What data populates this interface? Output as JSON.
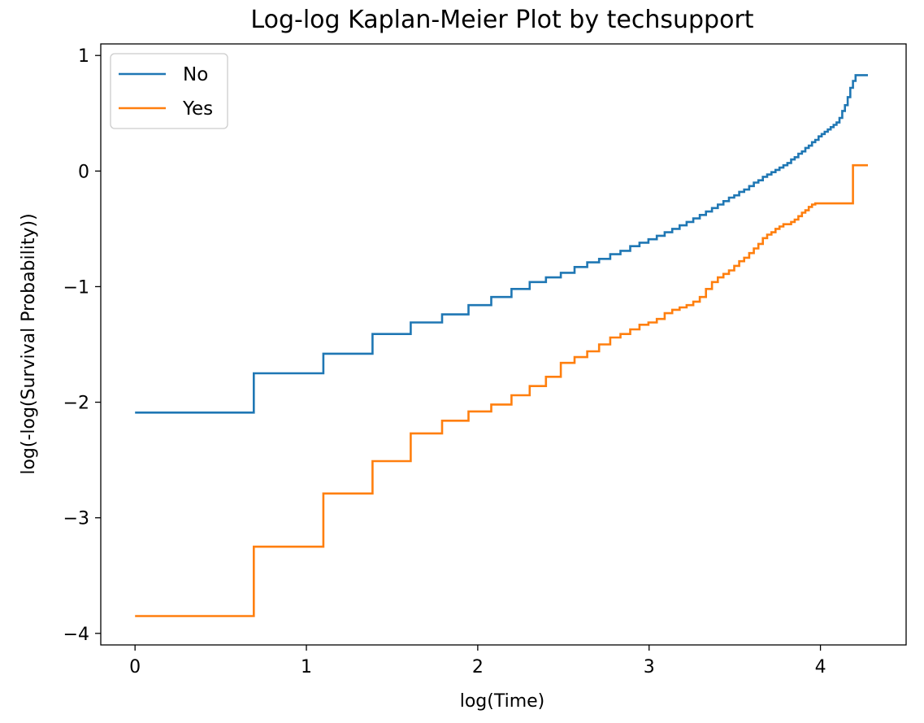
{
  "chart_data": {
    "type": "line",
    "step": true,
    "title": "Log-log Kaplan-Meier Plot by techsupport",
    "xlabel": "log(Time)",
    "ylabel": "log(-log(Survival Probability))",
    "xlim": [
      -0.2,
      4.5
    ],
    "ylim": [
      -4.1,
      1.1
    ],
    "xticks": [
      0,
      1,
      2,
      3,
      4
    ],
    "xtick_labels": [
      "0",
      "1",
      "2",
      "3",
      "4"
    ],
    "yticks": [
      -4,
      -3,
      -2,
      -1,
      0,
      1
    ],
    "ytick_labels": [
      "−4",
      "−3",
      "−2",
      "−1",
      "0",
      "1"
    ],
    "grid": false,
    "legend_position": "top-left",
    "series": [
      {
        "name": "No",
        "color": "#1f77b4",
        "x": [
          0,
          0.693,
          1.099,
          1.386,
          1.609,
          1.792,
          1.946,
          2.079,
          2.197,
          2.303,
          2.398,
          2.485,
          2.565,
          2.639,
          2.708,
          2.773,
          2.833,
          2.89,
          2.944,
          2.996,
          3.045,
          3.091,
          3.135,
          3.178,
          3.219,
          3.258,
          3.296,
          3.332,
          3.367,
          3.401,
          3.434,
          3.466,
          3.497,
          3.526,
          3.555,
          3.584,
          3.611,
          3.638,
          3.664,
          3.689,
          3.714,
          3.738,
          3.761,
          3.784,
          3.807,
          3.829,
          3.85,
          3.871,
          3.892,
          3.912,
          3.932,
          3.951,
          3.97,
          3.989,
          4.007,
          4.025,
          4.043,
          4.06,
          4.077,
          4.094,
          4.111,
          4.127,
          4.143,
          4.159,
          4.174,
          4.19,
          4.205,
          4.22,
          4.234,
          4.248,
          4.263,
          4.277
        ],
        "y": [
          -2.09,
          -1.75,
          -1.58,
          -1.41,
          -1.31,
          -1.24,
          -1.16,
          -1.09,
          -1.02,
          -0.96,
          -0.92,
          -0.88,
          -0.83,
          -0.79,
          -0.76,
          -0.72,
          -0.69,
          -0.65,
          -0.62,
          -0.59,
          -0.56,
          -0.53,
          -0.5,
          -0.47,
          -0.44,
          -0.41,
          -0.38,
          -0.35,
          -0.32,
          -0.29,
          -0.26,
          -0.23,
          -0.21,
          -0.18,
          -0.16,
          -0.13,
          -0.1,
          -0.08,
          -0.05,
          -0.03,
          -0.01,
          0.01,
          0.03,
          0.05,
          0.07,
          0.1,
          0.12,
          0.15,
          0.17,
          0.2,
          0.22,
          0.25,
          0.27,
          0.3,
          0.32,
          0.34,
          0.36,
          0.38,
          0.4,
          0.42,
          0.46,
          0.52,
          0.57,
          0.64,
          0.72,
          0.78,
          0.83,
          0.83,
          0.83,
          0.83,
          0.83,
          0.83
        ]
      },
      {
        "name": "Yes",
        "color": "#ff7f0e",
        "x": [
          0,
          0.693,
          1.099,
          1.386,
          1.609,
          1.792,
          1.946,
          2.079,
          2.197,
          2.303,
          2.398,
          2.485,
          2.565,
          2.639,
          2.708,
          2.773,
          2.833,
          2.89,
          2.944,
          2.996,
          3.045,
          3.091,
          3.135,
          3.178,
          3.219,
          3.258,
          3.296,
          3.332,
          3.367,
          3.401,
          3.434,
          3.466,
          3.497,
          3.526,
          3.555,
          3.584,
          3.611,
          3.638,
          3.664,
          3.689,
          3.714,
          3.738,
          3.761,
          3.784,
          3.807,
          3.829,
          3.85,
          3.871,
          3.892,
          3.912,
          3.932,
          3.951,
          3.97,
          3.989,
          4.007,
          4.025,
          4.043,
          4.06,
          4.077,
          4.094,
          4.111,
          4.127,
          4.143,
          4.159,
          4.174,
          4.19,
          4.205,
          4.22,
          4.234,
          4.248,
          4.263,
          4.277
        ],
        "y": [
          -3.85,
          -3.25,
          -2.79,
          -2.51,
          -2.27,
          -2.16,
          -2.08,
          -2.02,
          -1.94,
          -1.86,
          -1.78,
          -1.66,
          -1.61,
          -1.56,
          -1.5,
          -1.44,
          -1.41,
          -1.37,
          -1.33,
          -1.31,
          -1.28,
          -1.23,
          -1.2,
          -1.18,
          -1.16,
          -1.13,
          -1.09,
          -1.02,
          -0.96,
          -0.92,
          -0.89,
          -0.86,
          -0.82,
          -0.78,
          -0.75,
          -0.71,
          -0.67,
          -0.63,
          -0.58,
          -0.55,
          -0.53,
          -0.5,
          -0.48,
          -0.46,
          -0.46,
          -0.44,
          -0.42,
          -0.39,
          -0.36,
          -0.34,
          -0.31,
          -0.29,
          -0.28,
          -0.28,
          -0.28,
          -0.28,
          -0.28,
          -0.28,
          -0.28,
          -0.28,
          -0.28,
          -0.28,
          -0.28,
          -0.28,
          -0.28,
          0.05,
          0.05,
          0.05,
          0.05,
          0.05,
          0.05,
          0.05
        ]
      }
    ]
  }
}
